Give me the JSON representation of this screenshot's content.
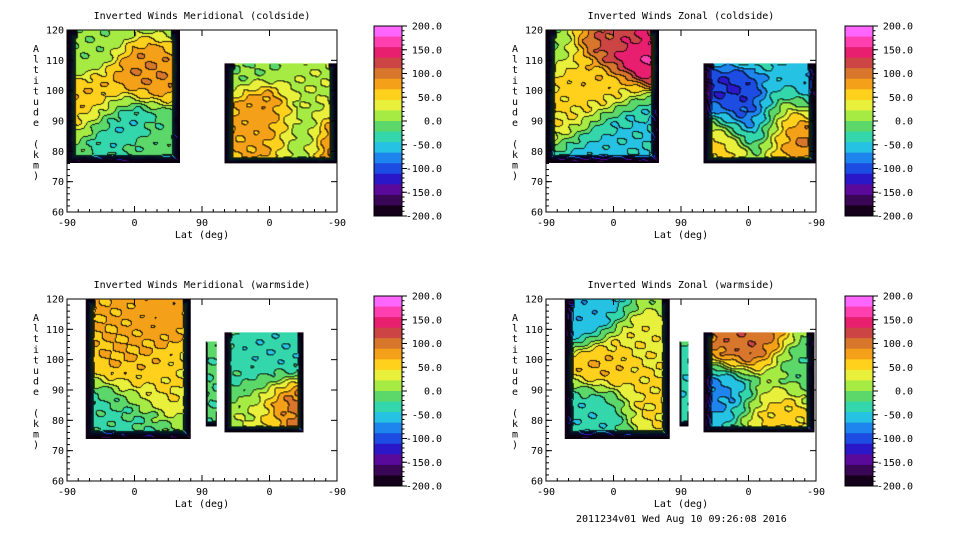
{
  "figure": {
    "footer": "2011234v01 Wed Aug 10 09:26:08 2016"
  },
  "colorbar": {
    "ticks": [
      "200.0",
      "150.0",
      "100.0",
      "50.0",
      "0.0",
      "-50.0",
      "-100.0",
      "-150.0",
      "-200.0"
    ],
    "colors": [
      "#ff66ff",
      "#ff3fb0",
      "#e81e6e",
      "#cc4444",
      "#d8772c",
      "#f4a018",
      "#ffd11c",
      "#e8f03c",
      "#a6ea44",
      "#5cd86a",
      "#34d6ac",
      "#26c2e4",
      "#1e84ee",
      "#1c4ce2",
      "#2a18c8",
      "#5a0a9a",
      "#3a0656",
      "#14001a"
    ]
  },
  "chart_data": [
    {
      "type": "heatmap",
      "title": "Inverted Winds Meridional (coldside)",
      "xlabel": "Lat (deg)",
      "ylabel": "Altitude (km)",
      "xticks": [
        "-90",
        "0",
        "90",
        "0",
        "-90"
      ],
      "yticks": [
        "120",
        "110",
        "100",
        "90",
        "80",
        "70",
        "60"
      ],
      "ylim": [
        60,
        120
      ],
      "value_range": [
        -200,
        200
      ],
      "regions": [
        {
          "x_range": [
            -90,
            60
          ],
          "alt_range": [
            76,
            120
          ],
          "blobs": [
            {
              "x": -50,
              "alt": 97,
              "value": 70
            },
            {
              "x": 10,
              "alt": 104,
              "value": 90
            },
            {
              "x": -15,
              "alt": 91,
              "value": -55
            },
            {
              "x": -70,
              "alt": 113,
              "value": 5
            },
            {
              "x": 30,
              "alt": 84,
              "value": -10
            }
          ]
        },
        {
          "x_range": [
            120,
            270
          ],
          "alt_range": [
            76,
            109
          ],
          "blobs": [
            {
              "x": 185,
              "alt": 88,
              "value": 90
            },
            {
              "x": 150,
              "alt": 84,
              "value": 70
            },
            {
              "x": 230,
              "alt": 86,
              "value": -55
            },
            {
              "x": 262,
              "alt": 85,
              "value": 150
            },
            {
              "x": 260,
              "alt": 99,
              "value": 20
            }
          ]
        }
      ]
    },
    {
      "type": "heatmap",
      "title": "Inverted Winds Zonal (coldside)",
      "xlabel": "Lat (deg)",
      "ylabel": "Altitude (km)",
      "xticks": [
        "-90",
        "0",
        "90",
        "0",
        "-90"
      ],
      "yticks": [
        "120",
        "110",
        "100",
        "90",
        "80",
        "70",
        "60"
      ],
      "ylim": [
        60,
        120
      ],
      "value_range": [
        -200,
        200
      ],
      "regions": [
        {
          "x_range": [
            -90,
            60
          ],
          "alt_range": [
            76,
            120
          ],
          "blobs": [
            {
              "x": 40,
              "alt": 114,
              "value": 170
            },
            {
              "x": 20,
              "alt": 118,
              "value": 110
            },
            {
              "x": -20,
              "alt": 99,
              "value": 60
            },
            {
              "x": -70,
              "alt": 89,
              "value": 50
            },
            {
              "x": 10,
              "alt": 88,
              "value": -50
            },
            {
              "x": -40,
              "alt": 80,
              "value": -60
            }
          ]
        },
        {
          "x_range": [
            120,
            270
          ],
          "alt_range": [
            76,
            109
          ],
          "blobs": [
            {
              "x": 150,
              "alt": 95,
              "value": -120
            },
            {
              "x": 195,
              "alt": 92,
              "value": -110
            },
            {
              "x": 230,
              "alt": 90,
              "value": 110
            },
            {
              "x": 133,
              "alt": 86,
              "value": 60
            },
            {
              "x": 255,
              "alt": 100,
              "value": -60
            }
          ]
        }
      ]
    },
    {
      "type": "heatmap",
      "title": "Inverted Winds Meridional (warmside)",
      "xlabel": "Lat (deg)",
      "ylabel": "Altitude (km)",
      "xticks": [
        "-90",
        "0",
        "90",
        "0",
        "-90"
      ],
      "yticks": [
        "120",
        "110",
        "100",
        "90",
        "80",
        "70",
        "60"
      ],
      "ylim": [
        60,
        120
      ],
      "value_range": [
        -200,
        200
      ],
      "regions": [
        {
          "x_range": [
            -65,
            75
          ],
          "alt_range": [
            74,
            120
          ],
          "blobs": [
            {
              "x": -40,
              "alt": 116,
              "value": 70
            },
            {
              "x": -5,
              "alt": 100,
              "value": 70
            },
            {
              "x": 30,
              "alt": 116,
              "value": 80
            },
            {
              "x": 15,
              "alt": 92,
              "value": 50
            },
            {
              "x": -20,
              "alt": 84,
              "value": -30
            }
          ]
        },
        {
          "x_range": [
            95,
            110
          ],
          "alt_range": [
            78,
            106
          ],
          "blobs": [
            {
              "x": 102,
              "alt": 92,
              "value": -20
            }
          ]
        },
        {
          "x_range": [
            120,
            225
          ],
          "alt_range": [
            76,
            109
          ],
          "blobs": [
            {
              "x": 200,
              "alt": 85,
              "value": 110
            },
            {
              "x": 150,
              "alt": 92,
              "value": -30
            },
            {
              "x": 185,
              "alt": 100,
              "value": -40
            },
            {
              "x": 160,
              "alt": 83,
              "value": 20
            }
          ]
        }
      ]
    },
    {
      "type": "heatmap",
      "title": "Inverted Winds Zonal (warmside)",
      "xlabel": "Lat (deg)",
      "ylabel": "Altitude (km)",
      "xticks": [
        "-90",
        "0",
        "90",
        "0",
        "-90"
      ],
      "yticks": [
        "120",
        "110",
        "100",
        "90",
        "80",
        "70",
        "60"
      ],
      "ylim": [
        60,
        120
      ],
      "value_range": [
        -200,
        200
      ],
      "regions": [
        {
          "x_range": [
            -65,
            75
          ],
          "alt_range": [
            74,
            120
          ],
          "blobs": [
            {
              "x": -10,
              "alt": 98,
              "value": 70
            },
            {
              "x": 30,
              "alt": 104,
              "value": 40
            },
            {
              "x": -40,
              "alt": 114,
              "value": -60
            },
            {
              "x": 50,
              "alt": 88,
              "value": 50
            },
            {
              "x": -25,
              "alt": 84,
              "value": -40
            }
          ]
        },
        {
          "x_range": [
            88,
            100
          ],
          "alt_range": [
            78,
            106
          ],
          "blobs": [
            {
              "x": 94,
              "alt": 92,
              "value": -40
            }
          ]
        },
        {
          "x_range": [
            120,
            268
          ],
          "alt_range": [
            76,
            109
          ],
          "blobs": [
            {
              "x": 180,
              "alt": 103,
              "value": 110
            },
            {
              "x": 160,
              "alt": 90,
              "value": -80
            },
            {
              "x": 210,
              "alt": 86,
              "value": 60
            },
            {
              "x": 240,
              "alt": 96,
              "value": -20
            }
          ]
        }
      ]
    }
  ]
}
